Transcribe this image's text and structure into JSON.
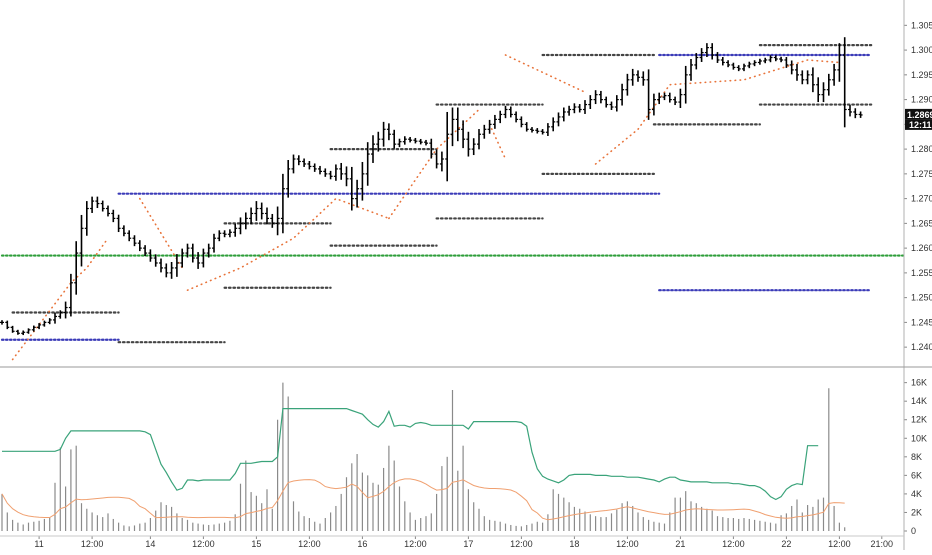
{
  "chart_data": [
    {
      "type": "ohlc",
      "description_free": true,
      "y_axis": {
        "position": "right",
        "ticks": [
          "1.30500",
          "1.30000",
          "1.29500",
          "1.29000",
          "1.28500",
          "1.28000",
          "1.27500",
          "1.27000",
          "1.26500",
          "1.26000",
          "1.25500",
          "1.25000",
          "1.24500",
          "1.24000"
        ],
        "ylim": [
          1.237,
          1.3085
        ]
      },
      "current_price": {
        "value": "1.28691",
        "countdown": "12:11",
        "level": 1.28691
      },
      "x_axis": {
        "ticks": [
          {
            "label": "11",
            "bar": 7
          },
          {
            "label": "12:00",
            "bar": 17
          },
          {
            "label": "14",
            "bar": 28
          },
          {
            "label": "12:00",
            "bar": 38
          },
          {
            "label": "15",
            "bar": 48
          },
          {
            "label": "12:00",
            "bar": 58
          },
          {
            "label": "16",
            "bar": 68
          },
          {
            "label": "12:00",
            "bar": 78
          },
          {
            "label": "17",
            "bar": 88
          },
          {
            "label": "12:00",
            "bar": 98
          },
          {
            "label": "18",
            "bar": 108
          },
          {
            "label": "12:00",
            "bar": 118
          },
          {
            "label": "21",
            "bar": 128
          },
          {
            "label": "12:00",
            "bar": 138
          },
          {
            "label": "22",
            "bar": 148
          },
          {
            "label": "12:00",
            "bar": 158
          },
          {
            "label": "21:00",
            "bar": 166
          }
        ]
      },
      "close": [
        1.245,
        1.244,
        1.2432,
        1.2428,
        1.243,
        1.2435,
        1.244,
        1.2445,
        1.245,
        1.2455,
        1.2462,
        1.247,
        1.248,
        1.253,
        1.259,
        1.264,
        1.268,
        1.2695,
        1.269,
        1.268,
        1.267,
        1.266,
        1.264,
        1.263,
        1.262,
        1.261,
        1.26,
        1.259,
        1.258,
        1.257,
        1.256,
        1.255,
        1.256,
        1.257,
        1.259,
        1.26,
        1.258,
        1.257,
        1.259,
        1.26,
        1.262,
        1.263,
        1.2628,
        1.2632,
        1.264,
        1.265,
        1.266,
        1.267,
        1.268,
        1.267,
        1.266,
        1.265,
        1.266,
        1.272,
        1.276,
        1.278,
        1.2775,
        1.277,
        1.2765,
        1.276,
        1.2755,
        1.275,
        1.2745,
        1.276,
        1.275,
        1.274,
        1.27,
        1.272,
        1.275,
        1.279,
        1.281,
        1.282,
        1.284,
        1.283,
        1.281,
        1.2815,
        1.282,
        1.2818,
        1.2816,
        1.2814,
        1.2812,
        1.279,
        1.277,
        1.278,
        1.283,
        1.286,
        1.284,
        1.282,
        1.28,
        1.281,
        1.283,
        1.284,
        1.285,
        1.286,
        1.287,
        1.288,
        1.287,
        1.286,
        1.285,
        1.284,
        1.2838,
        1.2836,
        1.2834,
        1.2845,
        1.2855,
        1.2865,
        1.2875,
        1.288,
        1.2885,
        1.288,
        1.289,
        1.29,
        1.291,
        1.29,
        1.289,
        1.2885,
        1.29,
        1.292,
        1.294,
        1.295,
        1.2945,
        1.294,
        1.288,
        1.29,
        1.2905,
        1.2908,
        1.29,
        1.2895,
        1.291,
        1.295,
        1.297,
        1.2985,
        1.2995,
        1.3005,
        1.299,
        1.298,
        1.2975,
        1.297,
        1.2965,
        1.2962,
        1.2968,
        1.2972,
        1.2975,
        1.2978,
        1.298,
        1.2985,
        1.2982,
        1.298,
        1.297,
        1.296,
        1.295,
        1.294,
        1.295,
        1.293,
        1.291,
        1.292,
        1.294,
        1.296,
        1.299,
        1.288,
        1.2875,
        1.287,
        1.2869
      ],
      "range": [
        0.0015,
        0.0012,
        0.001,
        0.001,
        0.0012,
        0.001,
        0.0012,
        0.0012,
        0.0012,
        0.0012,
        0.0025,
        0.0015,
        0.004,
        0.006,
        0.008,
        0.009,
        0.005,
        0.003,
        0.003,
        0.002,
        0.002,
        0.0025,
        0.0025,
        0.002,
        0.002,
        0.002,
        0.002,
        0.002,
        0.0025,
        0.0025,
        0.003,
        0.003,
        0.004,
        0.006,
        0.003,
        0.003,
        0.003,
        0.004,
        0.003,
        0.003,
        0.003,
        0.002,
        0.002,
        0.002,
        0.003,
        0.004,
        0.004,
        0.004,
        0.005,
        0.004,
        0.004,
        0.003,
        0.008,
        0.01,
        0.006,
        0.003,
        0.0025,
        0.002,
        0.002,
        0.002,
        0.002,
        0.002,
        0.002,
        0.003,
        0.004,
        0.005,
        0.008,
        0.006,
        0.008,
        0.008,
        0.006,
        0.005,
        0.005,
        0.004,
        0.003,
        0.002,
        0.002,
        0.0015,
        0.0015,
        0.0015,
        0.0015,
        0.003,
        0.003,
        0.005,
        0.015,
        0.008,
        0.008,
        0.006,
        0.005,
        0.004,
        0.0035,
        0.003,
        0.003,
        0.003,
        0.0025,
        0.0025,
        0.002,
        0.002,
        0.002,
        0.0015,
        0.0015,
        0.0015,
        0.0015,
        0.0025,
        0.003,
        0.003,
        0.003,
        0.0025,
        0.0025,
        0.002,
        0.003,
        0.003,
        0.003,
        0.0025,
        0.002,
        0.002,
        0.003,
        0.004,
        0.004,
        0.004,
        0.003,
        0.004,
        0.007,
        0.004,
        0.003,
        0.002,
        0.002,
        0.002,
        0.004,
        0.006,
        0.004,
        0.003,
        0.003,
        0.003,
        0.003,
        0.002,
        0.002,
        0.0015,
        0.0015,
        0.0015,
        0.0015,
        0.0015,
        0.0015,
        0.0015,
        0.0015,
        0.0015,
        0.0015,
        0.0015,
        0.002,
        0.003,
        0.004,
        0.003,
        0.003,
        0.005,
        0.005,
        0.005,
        0.004,
        0.004,
        0.008,
        0.012,
        0.003,
        0.0025,
        0.002,
        0.0015
      ],
      "reference_lines": [
        {
          "level": 1.2585,
          "start": 0,
          "end": 170,
          "color": "#2e9e3a"
        },
        {
          "level": 1.271,
          "start": 22,
          "end": 124,
          "color": "#3b3bb8"
        },
        {
          "level": 1.299,
          "start": 124,
          "end": 164,
          "color": "#3b3bb8"
        },
        {
          "level": 1.2515,
          "start": 124,
          "end": 164,
          "color": "#3b3bb8"
        },
        {
          "level": 1.2415,
          "start": 0,
          "end": 22,
          "color": "#3b3bb8"
        }
      ],
      "level_segments": [
        {
          "level": 1.247,
          "start": 2,
          "end": 22
        },
        {
          "level": 1.241,
          "start": 22,
          "end": 42
        },
        {
          "level": 1.265,
          "start": 42,
          "end": 62
        },
        {
          "level": 1.252,
          "start": 42,
          "end": 62
        },
        {
          "level": 1.28,
          "start": 62,
          "end": 82
        },
        {
          "level": 1.2605,
          "start": 62,
          "end": 82
        },
        {
          "level": 1.289,
          "start": 82,
          "end": 102
        },
        {
          "level": 1.266,
          "start": 82,
          "end": 102
        },
        {
          "level": 1.299,
          "start": 102,
          "end": 123
        },
        {
          "level": 1.275,
          "start": 102,
          "end": 123
        },
        {
          "level": 1.285,
          "start": 123,
          "end": 143
        },
        {
          "level": 1.301,
          "start": 143,
          "end": 164
        },
        {
          "level": 1.289,
          "start": 143,
          "end": 164
        }
      ],
      "trail_segments": [
        {
          "points": [
            [
              2,
              1.2375
            ],
            [
              13,
              1.253
            ],
            [
              16,
              1.256
            ],
            [
              20,
              1.262
            ]
          ]
        },
        {
          "points": [
            [
              26,
              1.27
            ],
            [
              34,
              1.256
            ]
          ]
        },
        {
          "points": [
            [
              35,
              1.2515
            ],
            [
              45,
              1.256
            ],
            [
              55,
              1.262
            ],
            [
              63,
              1.27
            ],
            [
              73,
              1.266
            ]
          ]
        },
        {
          "points": [
            [
              73,
              1.266
            ],
            [
              82,
              1.28
            ],
            [
              90,
              1.288
            ]
          ]
        },
        {
          "points": [
            [
              92,
              1.285
            ],
            [
              95,
              1.278
            ]
          ]
        },
        {
          "points": [
            [
              95,
              1.299
            ],
            [
              110,
              1.2915
            ]
          ]
        },
        {
          "points": [
            [
              112,
              1.277
            ],
            [
              120,
              1.284
            ],
            [
              126,
              1.293
            ],
            [
              140,
              1.294
            ],
            [
              152,
              1.298
            ],
            [
              158,
              1.2975
            ]
          ]
        }
      ],
      "volume_panel": {
        "y_ticks": [
          "16K",
          "14K",
          "12K",
          "10K",
          "8K",
          "6K",
          "4K",
          "2K",
          "0"
        ],
        "ylim": [
          0,
          16500
        ],
        "volumes": [
          4000,
          2000,
          1200,
          900,
          700,
          900,
          1000,
          1100,
          1300,
          1500,
          5200,
          9000,
          4800,
          8800,
          9200,
          3000,
          2400,
          2000,
          1700,
          1500,
          1900,
          1300,
          900,
          600,
          500,
          600,
          800,
          900,
          1400,
          2200,
          3100,
          2800,
          2600,
          1900,
          1400,
          1200,
          900,
          800,
          700,
          650,
          700,
          800,
          900,
          1100,
          1800,
          5100,
          7600,
          4200,
          3800,
          3000,
          4500,
          2400,
          12000,
          16000,
          14500,
          3200,
          2100,
          1600,
          1400,
          1000,
          800,
          1400,
          2000,
          2700,
          4000,
          5800,
          7300,
          8300,
          6300,
          6000,
          5200,
          5000,
          6800,
          9200,
          7600,
          4800,
          3200,
          2000,
          1200,
          1400,
          1600,
          1900,
          4000,
          7000,
          8000,
          15200,
          6500,
          9200,
          4500,
          3100,
          2400,
          1600,
          1200,
          1100,
          1000,
          800,
          650,
          550,
          500,
          650,
          800,
          1000,
          900,
          1800,
          4500,
          4000,
          3600,
          3100,
          2600,
          2400,
          2100,
          1800,
          1600,
          1500,
          1500,
          1900,
          2300,
          3000,
          3200,
          2700,
          2000,
          1500,
          1200,
          1000,
          900,
          800,
          2000,
          3600,
          3600,
          4300,
          3200,
          3000,
          2600,
          2400,
          2200,
          1600,
          1500,
          1400,
          1400,
          1300,
          1400,
          1300,
          1200,
          1100,
          1000,
          900,
          800,
          1700,
          1900,
          2700,
          3400,
          2000,
          2800,
          2600,
          3400,
          3600,
          15400,
          2700,
          900,
          400
        ],
        "ma_slow": [
          8600,
          8600,
          8600,
          8600,
          8600,
          8600,
          8600,
          8600,
          8600,
          8600,
          8600,
          8800,
          10000,
          10800,
          10800,
          10800,
          10800,
          10800,
          10800,
          10800,
          10800,
          10800,
          10800,
          10800,
          10800,
          10800,
          10800,
          10700,
          10400,
          8800,
          7200,
          6300,
          5300,
          4400,
          4600,
          5500,
          5500,
          5400,
          5500,
          5500,
          5500,
          5500,
          5500,
          5500,
          6200,
          7300,
          7300,
          7300,
          7400,
          7500,
          7500,
          7500,
          8000,
          13200,
          13200,
          13200,
          13200,
          13200,
          13200,
          13200,
          13200,
          13200,
          13200,
          13200,
          13200,
          13200,
          13000,
          12800,
          12600,
          12000,
          11500,
          11200,
          11800,
          12900,
          11300,
          11400,
          11400,
          11200,
          11600,
          11700,
          11600,
          11400,
          11400,
          11400,
          11400,
          11400,
          11400,
          11400,
          11000,
          11800,
          11800,
          11800,
          11800,
          11800,
          11800,
          11800,
          11800,
          11800,
          11700,
          11300,
          8500,
          6700,
          5900,
          5600,
          5400,
          5200,
          5500,
          6000,
          6100,
          6100,
          6100,
          6100,
          6000,
          6000,
          6000,
          5900,
          5900,
          5900,
          5800,
          5800,
          5800,
          5700,
          5600,
          5500,
          5300,
          5600,
          5800,
          5800,
          5500,
          5400,
          5300,
          5300,
          5300,
          5300,
          5200,
          5200,
          5200,
          5200,
          5100,
          5100,
          5000,
          4900,
          4900,
          4700,
          4300,
          3700,
          3400,
          3700,
          4500,
          4900,
          5100,
          5000,
          9200,
          9200,
          9200
        ]
      }
    }
  ]
}
